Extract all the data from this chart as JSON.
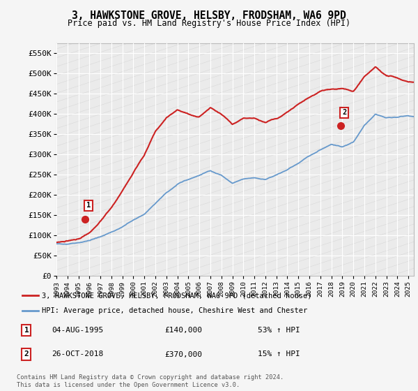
{
  "title_line1": "3, HAWKSTONE GROVE, HELSBY, FRODSHAM, WA6 9PD",
  "title_line2": "Price paid vs. HM Land Registry's House Price Index (HPI)",
  "ylim": [
    0,
    575000
  ],
  "yticks": [
    0,
    50000,
    100000,
    150000,
    200000,
    250000,
    300000,
    350000,
    400000,
    450000,
    500000,
    550000
  ],
  "ytick_labels": [
    "£0",
    "£50K",
    "£100K",
    "£150K",
    "£200K",
    "£250K",
    "£300K",
    "£350K",
    "£400K",
    "£450K",
    "£500K",
    "£550K"
  ],
  "hpi_color": "#6699cc",
  "price_color": "#cc2222",
  "marker_color": "#cc2222",
  "legend_label_price": "3, HAWKSTONE GROVE, HELSBY, FRODSHAM, WA6 9PD (detached house)",
  "legend_label_hpi": "HPI: Average price, detached house, Cheshire West and Chester",
  "annotation1_date": "04-AUG-1995",
  "annotation1_price": "£140,000",
  "annotation1_hpi": "53% ↑ HPI",
  "annotation2_date": "26-OCT-2018",
  "annotation2_price": "£370,000",
  "annotation2_hpi": "15% ↑ HPI",
  "footer": "Contains HM Land Registry data © Crown copyright and database right 2024.\nThis data is licensed under the Open Government Licence v3.0.",
  "background_color": "#f5f5f5",
  "plot_bg_color": "#ebebeb",
  "grid_color": "#ffffff",
  "sale1_x": 1995.58,
  "sale1_y": 140000,
  "sale2_x": 2018.82,
  "sale2_y": 370000,
  "xmin": 1993,
  "xmax": 2025.5,
  "hpi_keypoints_x": [
    1993,
    1994,
    1995,
    1996,
    1997,
    1998,
    1999,
    2000,
    2001,
    2002,
    2003,
    2004,
    2005,
    2006,
    2007,
    2008,
    2009,
    2010,
    2011,
    2012,
    2013,
    2014,
    2015,
    2016,
    2017,
    2018,
    2019,
    2020,
    2021,
    2022,
    2023,
    2024,
    2025,
    2025.5
  ],
  "hpi_keypoints_y": [
    78000,
    79000,
    82000,
    87000,
    96000,
    108000,
    120000,
    138000,
    152000,
    178000,
    205000,
    225000,
    238000,
    248000,
    260000,
    248000,
    228000,
    238000,
    242000,
    238000,
    248000,
    262000,
    278000,
    295000,
    312000,
    325000,
    318000,
    330000,
    372000,
    400000,
    390000,
    392000,
    395000,
    393000
  ],
  "price_keypoints_x": [
    1993,
    1994,
    1995,
    1996,
    1997,
    1998,
    1999,
    2000,
    2001,
    2002,
    2003,
    2004,
    2005,
    2006,
    2007,
    2008,
    2009,
    2010,
    2011,
    2012,
    2013,
    2014,
    2015,
    2016,
    2017,
    2018,
    2019,
    2020,
    2021,
    2022,
    2023,
    2024,
    2025,
    2025.5
  ],
  "price_keypoints_y": [
    82000,
    84000,
    92000,
    105000,
    135000,
    168000,
    210000,
    255000,
    300000,
    355000,
    390000,
    410000,
    398000,
    392000,
    415000,
    398000,
    372000,
    388000,
    390000,
    378000,
    388000,
    405000,
    422000,
    440000,
    455000,
    462000,
    462000,
    455000,
    490000,
    515000,
    495000,
    488000,
    480000,
    478000
  ]
}
